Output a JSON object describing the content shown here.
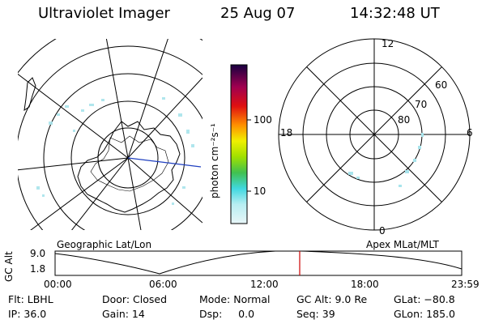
{
  "header": {
    "instrument": "Ultraviolet Imager",
    "date": "25 Aug 07",
    "time": "14:32:48 UT"
  },
  "colorbar": {
    "unit_label": "photon cm⁻²s⁻¹",
    "ticks": [
      "100",
      "10"
    ]
  },
  "geo_panel": {
    "caption": "Geographic Lat/Lon"
  },
  "apex_panel": {
    "caption": "Apex MLat/MLT",
    "mlt_labels": [
      "12",
      "18",
      "6",
      "0"
    ],
    "mlat_labels": [
      "60",
      "70",
      "80"
    ]
  },
  "altitude_strip": {
    "ylabel": "GC Alt",
    "yticks": [
      "9.0",
      "1.8"
    ],
    "time_ticks": [
      "00:00",
      "06:00",
      "12:00",
      "18:00",
      "23:59"
    ],
    "marker_time": "14:32:48",
    "marker_color": "#cc0000"
  },
  "status": {
    "row1": [
      {
        "label": "Flt: LBHL"
      },
      {
        "label": "Door: Closed"
      },
      {
        "label": "Mode: Normal"
      },
      {
        "label": "GC Alt: 9.0 Re"
      },
      {
        "label": "GLat: −80.8"
      }
    ],
    "row2": [
      {
        "label": "IP: 36.0"
      },
      {
        "label": "Gain: 14"
      },
      {
        "label": "Dsp:     0.0"
      },
      {
        "label": "Seq: 39"
      },
      {
        "label": "GLon: 185.0"
      }
    ]
  },
  "colors": {
    "colorbar_stops": [
      "#d8f0f4",
      "#50e0e8",
      "#40c040",
      "#a8e800",
      "#f0f000",
      "#ff9000",
      "#e01010",
      "#a00050",
      "#200050"
    ]
  }
}
